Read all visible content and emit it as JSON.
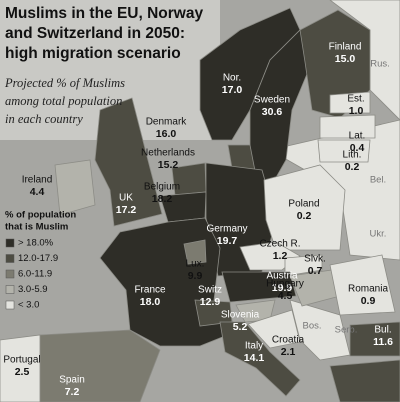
{
  "header": {
    "title_lines": [
      "Muslims in the EU, Norway",
      "and Switzerland in 2050:",
      "high migration scenario"
    ],
    "subtitle_lines": [
      "Projected % of Muslims",
      "among total population",
      "in each country"
    ]
  },
  "countries": [
    {
      "name": "Nor.",
      "value": "17.0"
    },
    {
      "name": "Finland",
      "value": "15.0"
    },
    {
      "name": "Sweden",
      "value": "30.6"
    },
    {
      "name": "Est.",
      "value": "1.0"
    },
    {
      "name": "Denmark",
      "value": "16.0"
    },
    {
      "name": "Lat.",
      "value": "0.4"
    },
    {
      "name": "Lith.",
      "value": "0.2"
    },
    {
      "name": "Netherlands",
      "value": "15.2"
    },
    {
      "name": "Ireland",
      "value": "4.4"
    },
    {
      "name": "UK",
      "value": "17.2"
    },
    {
      "name": "Belgium",
      "value": "18.2"
    },
    {
      "name": "Poland",
      "value": "0.2"
    },
    {
      "name": "Germany",
      "value": "19.7"
    },
    {
      "name": "Czech R.",
      "value": "1.2"
    },
    {
      "name": "Slvk.",
      "value": "0.7"
    },
    {
      "name": "Lux.",
      "value": "9.9"
    },
    {
      "name": "France",
      "value": "18.0"
    },
    {
      "name": "Switz",
      "value": "12.9"
    },
    {
      "name": "Austria",
      "value": "19.9"
    },
    {
      "name": "Hungary",
      "value": "4.5"
    },
    {
      "name": "Romania",
      "value": "0.9"
    },
    {
      "name": "Slovenia",
      "value": "5.2"
    },
    {
      "name": "Croatia",
      "value": "2.1"
    },
    {
      "name": "Italy",
      "value": "14.1"
    },
    {
      "name": "Portugal",
      "value": "2.5"
    },
    {
      "name": "Spain",
      "value": "7.2"
    },
    {
      "name": "Bul.",
      "value": "11.6"
    }
  ],
  "other_labels": [
    "Rus.",
    "Bel.",
    "Ukr.",
    "Bos.",
    "Serb."
  ],
  "legend": {
    "title_lines": [
      "% of population",
      "that is Muslim"
    ],
    "items": [
      "> 18.0%",
      "12.0-17.9",
      "6.0-11.9",
      "3.0-5.9",
      "< 3.0"
    ]
  }
}
